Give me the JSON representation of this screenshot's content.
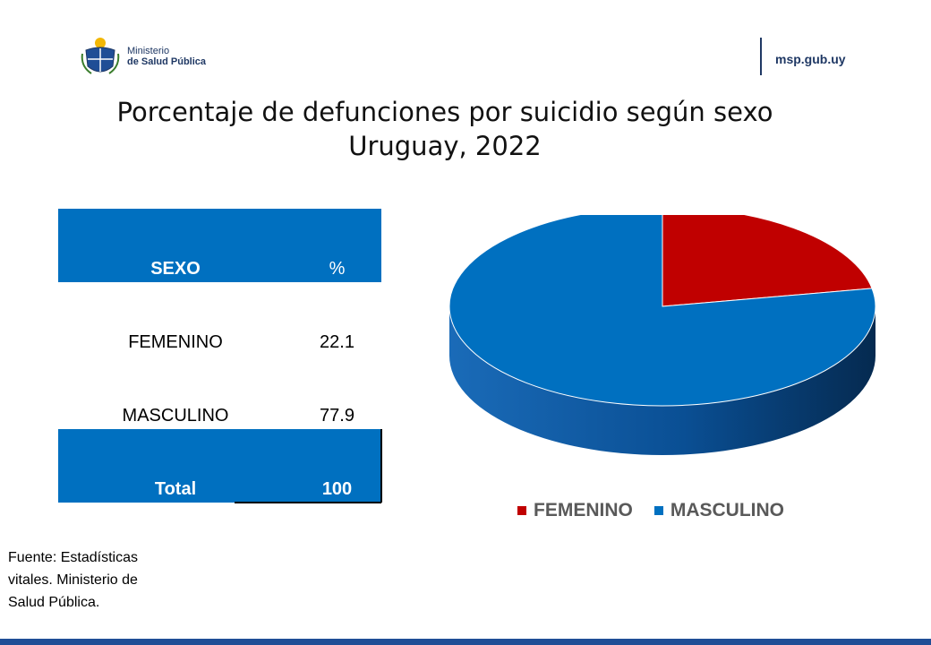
{
  "header": {
    "org_line1": "Ministerio",
    "org_line2": "de Salud Pública",
    "website": "msp.gub.uy"
  },
  "title": {
    "line1": "Porcentaje de defunciones por suicidio según sexo",
    "line2": "Uruguay, 2022"
  },
  "table": {
    "header": [
      "SEXO",
      "%"
    ],
    "rows": [
      [
        "FEMENINO",
        "22.1"
      ],
      [
        "MASCULINO",
        "77.9"
      ]
    ],
    "total": [
      "Total",
      "100"
    ]
  },
  "chart_data": {
    "type": "pie",
    "title": "Porcentaje de defunciones por suicidio según sexo Uruguay, 2022",
    "categories": [
      "FEMENINO",
      "MASCULINO"
    ],
    "values": [
      22.1,
      77.9
    ],
    "colors": [
      "#c00000",
      "#0070c0"
    ],
    "legend": [
      "FEMENINO",
      "MASCULINO"
    ],
    "legend_position": "bottom"
  },
  "source": "Fuente: Estadísticas vitales. Ministerio de Salud Pública."
}
